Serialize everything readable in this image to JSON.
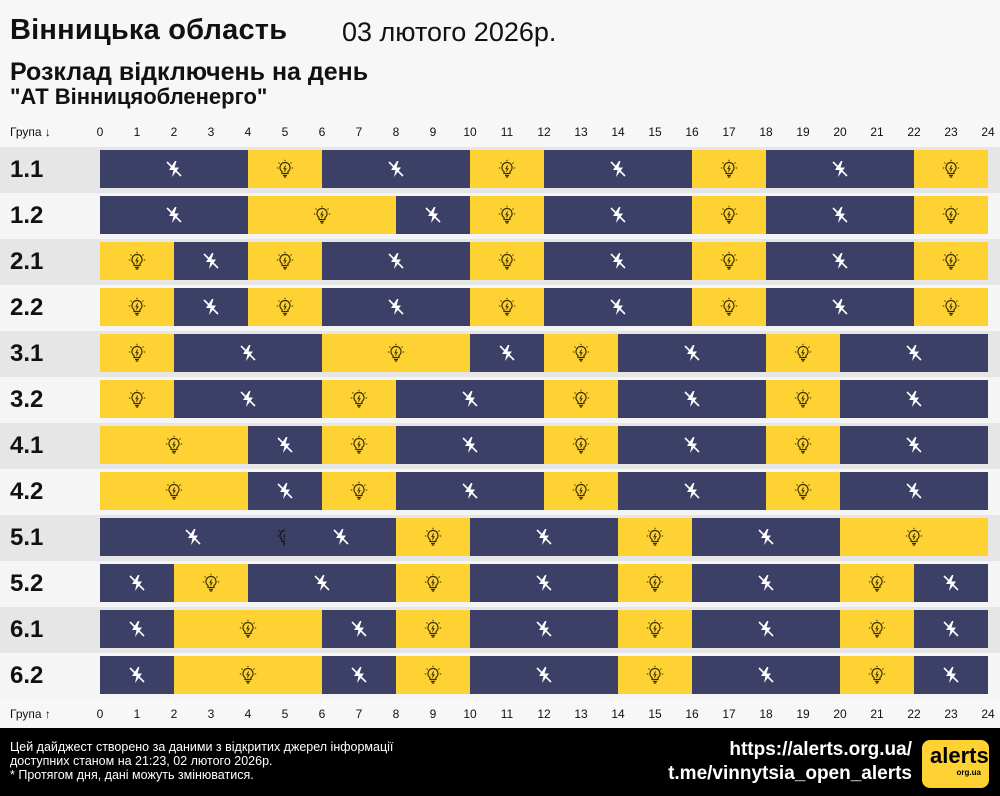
{
  "header": {
    "region": "Вінницька область",
    "date": "03 лютого 2026р.",
    "subtitle": "Розклад відключень на день",
    "company": "\"АТ Вінницяобленерго\""
  },
  "axis": {
    "top_label": "Група ↓",
    "bottom_label": "Група ↑",
    "hours": [
      "0",
      "1",
      "2",
      "3",
      "4",
      "5",
      "6",
      "7",
      "8",
      "9",
      "10",
      "11",
      "12",
      "13",
      "14",
      "15",
      "16",
      "17",
      "18",
      "19",
      "20",
      "21",
      "22",
      "23",
      "24"
    ]
  },
  "colors": {
    "off": "#3c3f66",
    "on": "#ffd233",
    "band_dark": "#e6e6e6",
    "band_light": "#f5f5f5"
  },
  "legend_icons": {
    "off": "lightning-off-icon",
    "on": "lightbulb-icon"
  },
  "schedule": [
    {
      "group": "1.1",
      "segments": [
        {
          "s": 0,
          "e": 4,
          "st": "off"
        },
        {
          "s": 4,
          "e": 6,
          "st": "on"
        },
        {
          "s": 6,
          "e": 10,
          "st": "off"
        },
        {
          "s": 10,
          "e": 12,
          "st": "on"
        },
        {
          "s": 12,
          "e": 16,
          "st": "off"
        },
        {
          "s": 16,
          "e": 18,
          "st": "on"
        },
        {
          "s": 18,
          "e": 22,
          "st": "off"
        },
        {
          "s": 22,
          "e": 24,
          "st": "on"
        }
      ]
    },
    {
      "group": "1.2",
      "segments": [
        {
          "s": 0,
          "e": 4,
          "st": "off"
        },
        {
          "s": 4,
          "e": 8,
          "st": "on"
        },
        {
          "s": 8,
          "e": 10,
          "st": "off"
        },
        {
          "s": 10,
          "e": 12,
          "st": "on"
        },
        {
          "s": 12,
          "e": 16,
          "st": "off"
        },
        {
          "s": 16,
          "e": 18,
          "st": "on"
        },
        {
          "s": 18,
          "e": 22,
          "st": "off"
        },
        {
          "s": 22,
          "e": 24,
          "st": "on"
        }
      ]
    },
    {
      "group": "2.1",
      "segments": [
        {
          "s": 0,
          "e": 2,
          "st": "on"
        },
        {
          "s": 2,
          "e": 4,
          "st": "off"
        },
        {
          "s": 4,
          "e": 6,
          "st": "on"
        },
        {
          "s": 6,
          "e": 10,
          "st": "off"
        },
        {
          "s": 10,
          "e": 12,
          "st": "on"
        },
        {
          "s": 12,
          "e": 16,
          "st": "off"
        },
        {
          "s": 16,
          "e": 18,
          "st": "on"
        },
        {
          "s": 18,
          "e": 22,
          "st": "off"
        },
        {
          "s": 22,
          "e": 24,
          "st": "on"
        }
      ]
    },
    {
      "group": "2.2",
      "segments": [
        {
          "s": 0,
          "e": 2,
          "st": "on"
        },
        {
          "s": 2,
          "e": 4,
          "st": "off"
        },
        {
          "s": 4,
          "e": 6,
          "st": "on"
        },
        {
          "s": 6,
          "e": 10,
          "st": "off"
        },
        {
          "s": 10,
          "e": 12,
          "st": "on"
        },
        {
          "s": 12,
          "e": 16,
          "st": "off"
        },
        {
          "s": 16,
          "e": 18,
          "st": "on"
        },
        {
          "s": 18,
          "e": 22,
          "st": "off"
        },
        {
          "s": 22,
          "e": 24,
          "st": "on"
        }
      ]
    },
    {
      "group": "3.1",
      "segments": [
        {
          "s": 0,
          "e": 2,
          "st": "on"
        },
        {
          "s": 2,
          "e": 6,
          "st": "off"
        },
        {
          "s": 6,
          "e": 10,
          "st": "on"
        },
        {
          "s": 10,
          "e": 12,
          "st": "off"
        },
        {
          "s": 12,
          "e": 14,
          "st": "on"
        },
        {
          "s": 14,
          "e": 18,
          "st": "off"
        },
        {
          "s": 18,
          "e": 20,
          "st": "on"
        },
        {
          "s": 20,
          "e": 24,
          "st": "off"
        }
      ]
    },
    {
      "group": "3.2",
      "segments": [
        {
          "s": 0,
          "e": 2,
          "st": "on"
        },
        {
          "s": 2,
          "e": 6,
          "st": "off"
        },
        {
          "s": 6,
          "e": 8,
          "st": "on"
        },
        {
          "s": 8,
          "e": 12,
          "st": "off"
        },
        {
          "s": 12,
          "e": 14,
          "st": "on"
        },
        {
          "s": 14,
          "e": 18,
          "st": "off"
        },
        {
          "s": 18,
          "e": 20,
          "st": "on"
        },
        {
          "s": 20,
          "e": 24,
          "st": "off"
        }
      ]
    },
    {
      "group": "4.1",
      "segments": [
        {
          "s": 0,
          "e": 4,
          "st": "on"
        },
        {
          "s": 4,
          "e": 6,
          "st": "off"
        },
        {
          "s": 6,
          "e": 8,
          "st": "on"
        },
        {
          "s": 8,
          "e": 12,
          "st": "off"
        },
        {
          "s": 12,
          "e": 14,
          "st": "on"
        },
        {
          "s": 14,
          "e": 18,
          "st": "off"
        },
        {
          "s": 18,
          "e": 20,
          "st": "on"
        },
        {
          "s": 20,
          "e": 24,
          "st": "off"
        }
      ]
    },
    {
      "group": "4.2",
      "segments": [
        {
          "s": 0,
          "e": 4,
          "st": "on"
        },
        {
          "s": 4,
          "e": 6,
          "st": "off"
        },
        {
          "s": 6,
          "e": 8,
          "st": "on"
        },
        {
          "s": 8,
          "e": 12,
          "st": "off"
        },
        {
          "s": 12,
          "e": 14,
          "st": "on"
        },
        {
          "s": 14,
          "e": 18,
          "st": "off"
        },
        {
          "s": 18,
          "e": 20,
          "st": "on"
        },
        {
          "s": 20,
          "e": 24,
          "st": "off"
        }
      ]
    },
    {
      "group": "5.1",
      "segments": [
        {
          "s": 0,
          "e": 5,
          "st": "off"
        },
        {
          "s": 5,
          "e": 5,
          "st": "on"
        },
        {
          "s": 5,
          "e": 8,
          "st": "off"
        },
        {
          "s": 8,
          "e": 10,
          "st": "on"
        },
        {
          "s": 10,
          "e": 14,
          "st": "off"
        },
        {
          "s": 14,
          "e": 16,
          "st": "on"
        },
        {
          "s": 16,
          "e": 20,
          "st": "off"
        },
        {
          "s": 20,
          "e": 24,
          "st": "on"
        }
      ]
    },
    {
      "group": "5.2",
      "segments": [
        {
          "s": 0,
          "e": 2,
          "st": "off"
        },
        {
          "s": 2,
          "e": 4,
          "st": "on"
        },
        {
          "s": 4,
          "e": 8,
          "st": "off"
        },
        {
          "s": 8,
          "e": 10,
          "st": "on"
        },
        {
          "s": 10,
          "e": 14,
          "st": "off"
        },
        {
          "s": 14,
          "e": 16,
          "st": "on"
        },
        {
          "s": 16,
          "e": 20,
          "st": "off"
        },
        {
          "s": 20,
          "e": 22,
          "st": "on"
        },
        {
          "s": 22,
          "e": 24,
          "st": "off"
        }
      ]
    },
    {
      "group": "6.1",
      "segments": [
        {
          "s": 0,
          "e": 2,
          "st": "off"
        },
        {
          "s": 2,
          "e": 6,
          "st": "on"
        },
        {
          "s": 6,
          "e": 8,
          "st": "off"
        },
        {
          "s": 8,
          "e": 10,
          "st": "on"
        },
        {
          "s": 10,
          "e": 14,
          "st": "off"
        },
        {
          "s": 14,
          "e": 16,
          "st": "on"
        },
        {
          "s": 16,
          "e": 20,
          "st": "off"
        },
        {
          "s": 20,
          "e": 22,
          "st": "on"
        },
        {
          "s": 22,
          "e": 24,
          "st": "off"
        }
      ]
    },
    {
      "group": "6.2",
      "segments": [
        {
          "s": 0,
          "e": 2,
          "st": "off"
        },
        {
          "s": 2,
          "e": 6,
          "st": "on"
        },
        {
          "s": 6,
          "e": 8,
          "st": "off"
        },
        {
          "s": 8,
          "e": 10,
          "st": "on"
        },
        {
          "s": 10,
          "e": 14,
          "st": "off"
        },
        {
          "s": 14,
          "e": 16,
          "st": "on"
        },
        {
          "s": 16,
          "e": 20,
          "st": "off"
        },
        {
          "s": 20,
          "e": 22,
          "st": "on"
        },
        {
          "s": 22,
          "e": 24,
          "st": "off"
        }
      ]
    }
  ],
  "footer": {
    "note_line1": "Цей дайджест створено за даними з відкритих джерел інформації",
    "note_line2": "доступних станом на 21:23, 02 лютого 2026р.",
    "note_line3": "* Протягом дня, дані можуть змінюватися.",
    "link1": "https://alerts.org.ua/",
    "link2": "t.me/vinnytsia_open_alerts",
    "logo_main": "alerts",
    "logo_sub": "org.ua"
  }
}
